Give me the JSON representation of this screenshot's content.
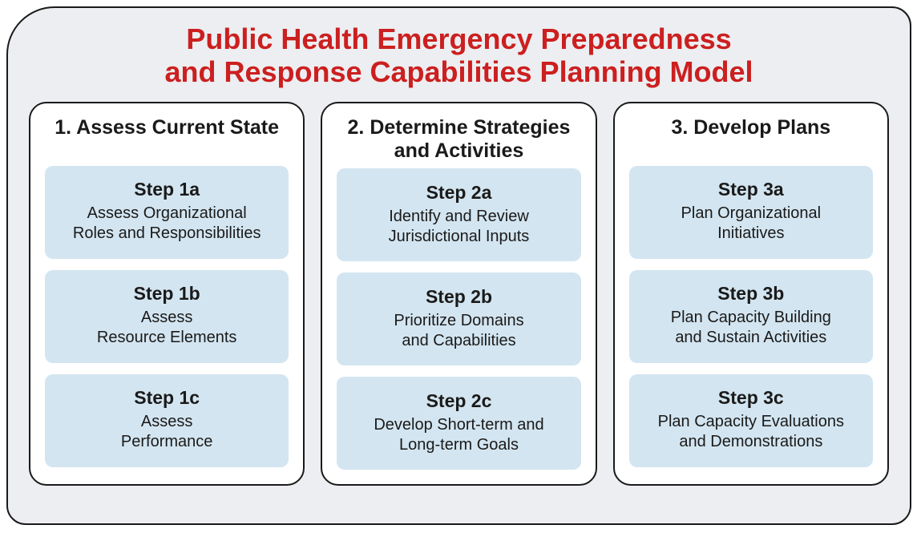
{
  "type": "infographic",
  "background_color": "#eceef1",
  "frame_border_color": "#1a1a1a",
  "frame_border_width": 2,
  "frame_corner_radius": 24,
  "title": {
    "line1": "Public Health Emergency Preparedness",
    "line2": "and Response Capabilities Planning Model",
    "color": "#cc1f1f",
    "fontsize": 36,
    "fontweight": 700
  },
  "phase_box": {
    "background": "#ffffff",
    "border_color": "#1a1a1a",
    "border_width": 2.5,
    "corner_radius": 22,
    "title_fontsize": 25,
    "title_color": "#1a1a1a"
  },
  "step_box": {
    "background": "#d3e5f0",
    "corner_radius": 10,
    "label_fontsize": 23,
    "desc_fontsize": 20,
    "text_color": "#1a1a1a"
  },
  "phases": [
    {
      "title": "1. Assess Current State",
      "steps": [
        {
          "label": "Step 1a",
          "desc": "Assess Organizational\nRoles and Responsibilities"
        },
        {
          "label": "Step 1b",
          "desc": "Assess\nResource Elements"
        },
        {
          "label": "Step 1c",
          "desc": "Assess\nPerformance"
        }
      ]
    },
    {
      "title": "2. Determine Strategies\nand Activities",
      "steps": [
        {
          "label": "Step 2a",
          "desc": "Identify and Review\nJurisdictional Inputs"
        },
        {
          "label": "Step 2b",
          "desc": "Prioritize Domains\nand Capabilities"
        },
        {
          "label": "Step 2c",
          "desc": "Develop Short-term and\nLong-term Goals"
        }
      ]
    },
    {
      "title": "3. Develop Plans",
      "steps": [
        {
          "label": "Step 3a",
          "desc": "Plan Organizational\nInitiatives"
        },
        {
          "label": "Step 3b",
          "desc": "Plan Capacity Building\nand Sustain Activities"
        },
        {
          "label": "Step 3c",
          "desc": "Plan Capacity Evaluations\nand Demonstrations"
        }
      ]
    }
  ]
}
